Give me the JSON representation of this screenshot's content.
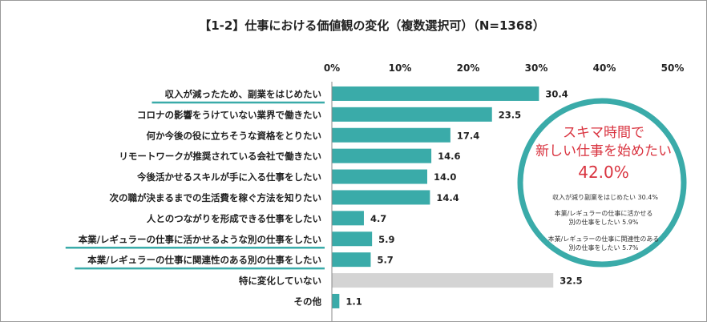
{
  "chart_data": {
    "type": "bar",
    "orientation": "horizontal",
    "title": "【1-2】仕事における価値観の変化（複数選択可）（N=1368）",
    "categories": [
      "収入が減ったため、副業をはじめたい",
      "コロナの影響をうけていない業界で働きたい",
      "何か今後の役に立ちそうな資格をとりたい",
      "リモートワークが推奨されている会社で働きたい",
      "今後活かせるスキルが手に入る仕事をしたい",
      "次の職が決まるまでの生活費を稼ぐ方法を知りたい",
      "人とのつながりを形成できる仕事をしたい",
      "本業/レギュラーの仕事に活かせるような別の仕事をしたい",
      "本業/レギュラーの仕事に関連性のある別の仕事をしたい",
      "特に変化していない",
      "その他"
    ],
    "values": [
      30.4,
      23.5,
      17.4,
      14.6,
      14.0,
      14.4,
      4.7,
      5.9,
      5.7,
      32.5,
      1.1
    ],
    "value_labels": [
      "30.4",
      "23.5",
      "17.4",
      "14.6",
      "14.0",
      "14.4",
      "4.7",
      "5.9",
      "5.7",
      "32.5",
      "1.1"
    ],
    "highlighted": [
      true,
      false,
      false,
      false,
      false,
      false,
      false,
      true,
      true,
      false,
      false
    ],
    "bar_colors": [
      "#3aaba9",
      "#3aaba9",
      "#3aaba9",
      "#3aaba9",
      "#3aaba9",
      "#3aaba9",
      "#3aaba9",
      "#3aaba9",
      "#3aaba9",
      "#d4d4d4",
      "#3aaba9"
    ],
    "xlim": [
      0,
      50
    ],
    "ticks": [
      0,
      10,
      20,
      30,
      40,
      50
    ],
    "tick_labels": [
      "0%",
      "10%",
      "20%",
      "30%",
      "40%",
      "50%"
    ],
    "grid": false
  },
  "callout": {
    "line1": "スキマ時間で",
    "line2": "新しい仕事を始めたい",
    "percent": "42.0%",
    "item1": "収入が減り副業をはじめたい 30.4%",
    "item2_l1": "本業/レギュラーの仕事に活かせる",
    "item2_l2": "別の仕事をしたい 5.9%",
    "item3_l1": "本業/レギュラーの仕事に関連性のある",
    "item3_l2": "別の仕事をしたい 5.7%"
  },
  "colors": {
    "accent": "#3aaba9",
    "neutral_bar": "#d4d4d4",
    "callout_text": "#d9333f"
  }
}
